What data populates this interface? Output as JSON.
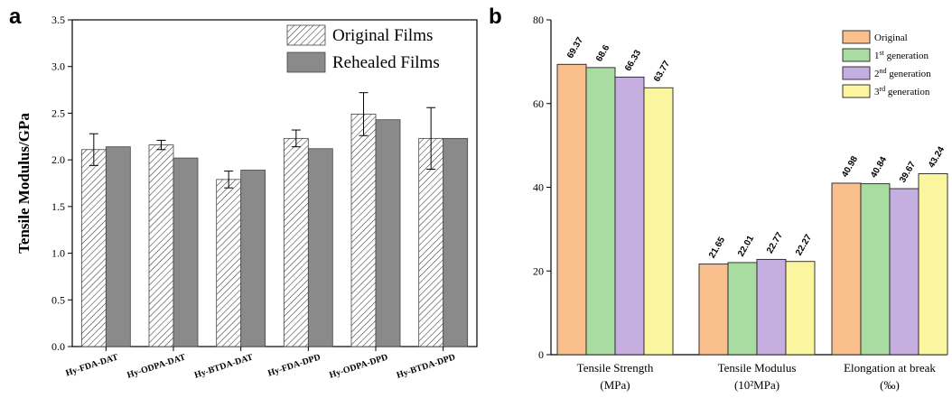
{
  "chart_data": [
    {
      "panel": "a",
      "type": "bar",
      "ylabel": "Tensile Modulus/GPa",
      "ylim": [
        0,
        3.5
      ],
      "yticks": [
        "0.0",
        "0.5",
        "1.0",
        "1.5",
        "2.0",
        "2.5",
        "3.0",
        "3.5"
      ],
      "categories": [
        "Hy-FDA-DAT",
        "Hy-ODPA-DAT",
        "Hy-BTDA-DAT",
        "Hy-FDA-DPD",
        "Hy-ODPA-DPD",
        "Hy-BTDA-DPD"
      ],
      "series": [
        {
          "name": "Original Films",
          "values": [
            2.11,
            2.16,
            1.79,
            2.23,
            2.49,
            2.23
          ],
          "error": [
            0.17,
            0.05,
            0.09,
            0.09,
            0.23,
            0.33
          ],
          "fill": "hatched"
        },
        {
          "name": "Rehealed Films",
          "values": [
            2.14,
            2.02,
            1.89,
            2.12,
            2.43,
            2.23
          ],
          "fill": "#8a8a8a"
        }
      ],
      "legend": "top-right"
    },
    {
      "panel": "b",
      "type": "bar",
      "ylim": [
        0,
        80
      ],
      "yticks": [
        "0",
        "20",
        "40",
        "60",
        "80"
      ],
      "categories": [
        {
          "line1": "Tensile Strength",
          "line2": "(MPa)"
        },
        {
          "line1": "Tensile Modulus",
          "line2": "(10²MPa)"
        },
        {
          "line1": "Elongation at break",
          "line2": "(‰)"
        }
      ],
      "series": [
        {
          "name": "Original",
          "color": "#f9c08e",
          "values": [
            69.37,
            21.65,
            40.98
          ],
          "labels": [
            "69.37",
            "21.65",
            "40.98"
          ]
        },
        {
          "name": "1st generation",
          "ord": "1",
          "sup": "st",
          "rest": " generation",
          "color": "#a8dca0",
          "values": [
            68.6,
            22.01,
            40.84
          ],
          "labels": [
            "68.6",
            "22.01",
            "40.84"
          ]
        },
        {
          "name": "2nd generation",
          "ord": "2",
          "sup": "nd",
          "rest": " generation",
          "color": "#c5aee0",
          "values": [
            66.33,
            22.77,
            39.67
          ],
          "labels": [
            "66.33",
            "22.77",
            "39.67"
          ]
        },
        {
          "name": "3rd generation",
          "ord": "3",
          "sup": "rd",
          "rest": " generation",
          "color": "#fbf5a0",
          "values": [
            63.77,
            22.27,
            43.24
          ],
          "labels": [
            "63.77",
            "22.27",
            "43.24"
          ]
        }
      ],
      "legend": "top-right"
    }
  ]
}
